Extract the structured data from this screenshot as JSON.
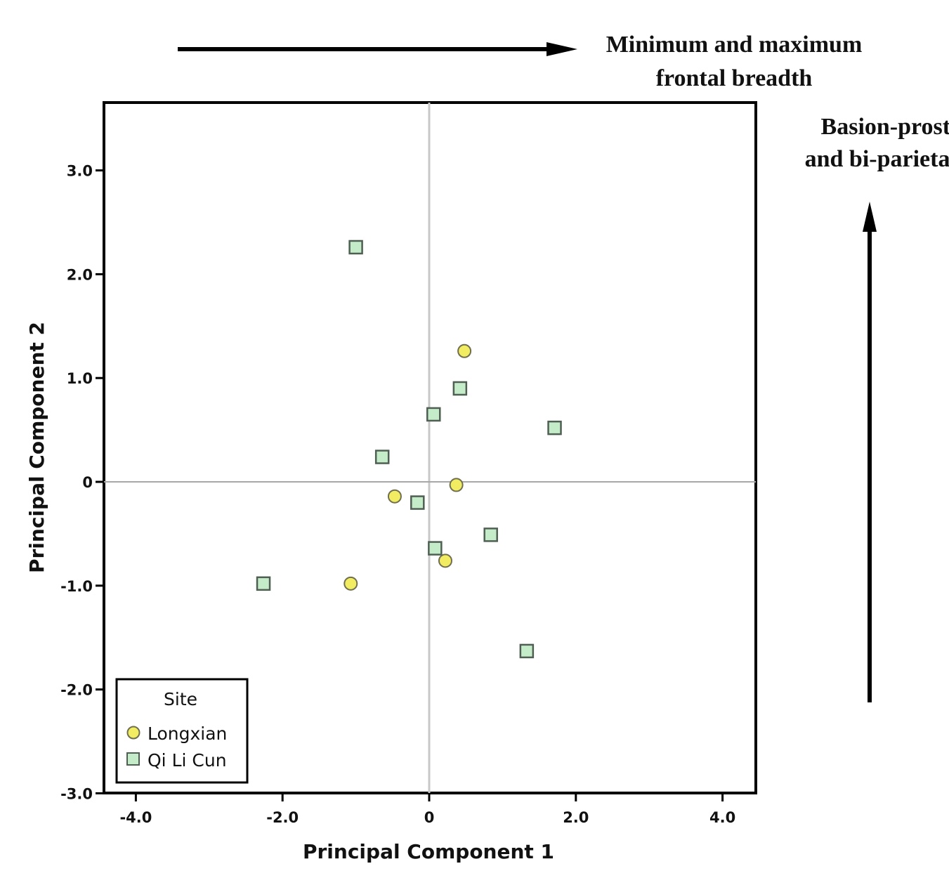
{
  "annotations": {
    "top_line1": "Minimum and maximum",
    "top_line2": "frontal breadth",
    "right_line1": "Basion-prosthi",
    "right_line2": "and bi-parietal br"
  },
  "chart_data": {
    "type": "scatter",
    "xlabel": "Principal Component 1",
    "ylabel": "Principal Component 2",
    "xlim": [
      -4.4,
      4.5
    ],
    "ylim": [
      -3.0,
      3.7
    ],
    "x_ticks": [
      -4.0,
      -2.0,
      0.0,
      2.0,
      4.0
    ],
    "x_tick_labels": [
      "-4.0",
      "-2.0",
      "0",
      "2.0",
      "4.0"
    ],
    "y_ticks": [
      3.0,
      2.0,
      1.0,
      0.0,
      -1.0,
      -2.0,
      -3.0
    ],
    "y_tick_labels": [
      "3.0",
      "2.0",
      "1.0",
      "0",
      "-1.0",
      "-2.0",
      "-3.0"
    ],
    "reference_lines": {
      "x": 0,
      "y": 0
    },
    "grid": false,
    "legend": {
      "title": "Site",
      "position": "bottom-left"
    },
    "series": [
      {
        "name": "Longxian",
        "marker": "circle",
        "color": "#f2ec62",
        "points": [
          {
            "x": 0.48,
            "y": 1.26
          },
          {
            "x": 0.37,
            "y": -0.03
          },
          {
            "x": -0.47,
            "y": -0.14
          },
          {
            "x": 0.22,
            "y": -0.76
          },
          {
            "x": -1.07,
            "y": -0.98
          }
        ]
      },
      {
        "name": "Qi Li Cun",
        "marker": "square",
        "color": "#c5ecc8",
        "points": [
          {
            "x": -1.0,
            "y": 2.26
          },
          {
            "x": 0.42,
            "y": 0.9
          },
          {
            "x": 0.06,
            "y": 0.65
          },
          {
            "x": 1.71,
            "y": 0.52
          },
          {
            "x": -0.64,
            "y": 0.24
          },
          {
            "x": -0.16,
            "y": -0.2
          },
          {
            "x": 0.08,
            "y": -0.64
          },
          {
            "x": 0.84,
            "y": -0.51
          },
          {
            "x": -2.26,
            "y": -0.98
          },
          {
            "x": 1.33,
            "y": -1.63
          }
        ]
      }
    ]
  }
}
